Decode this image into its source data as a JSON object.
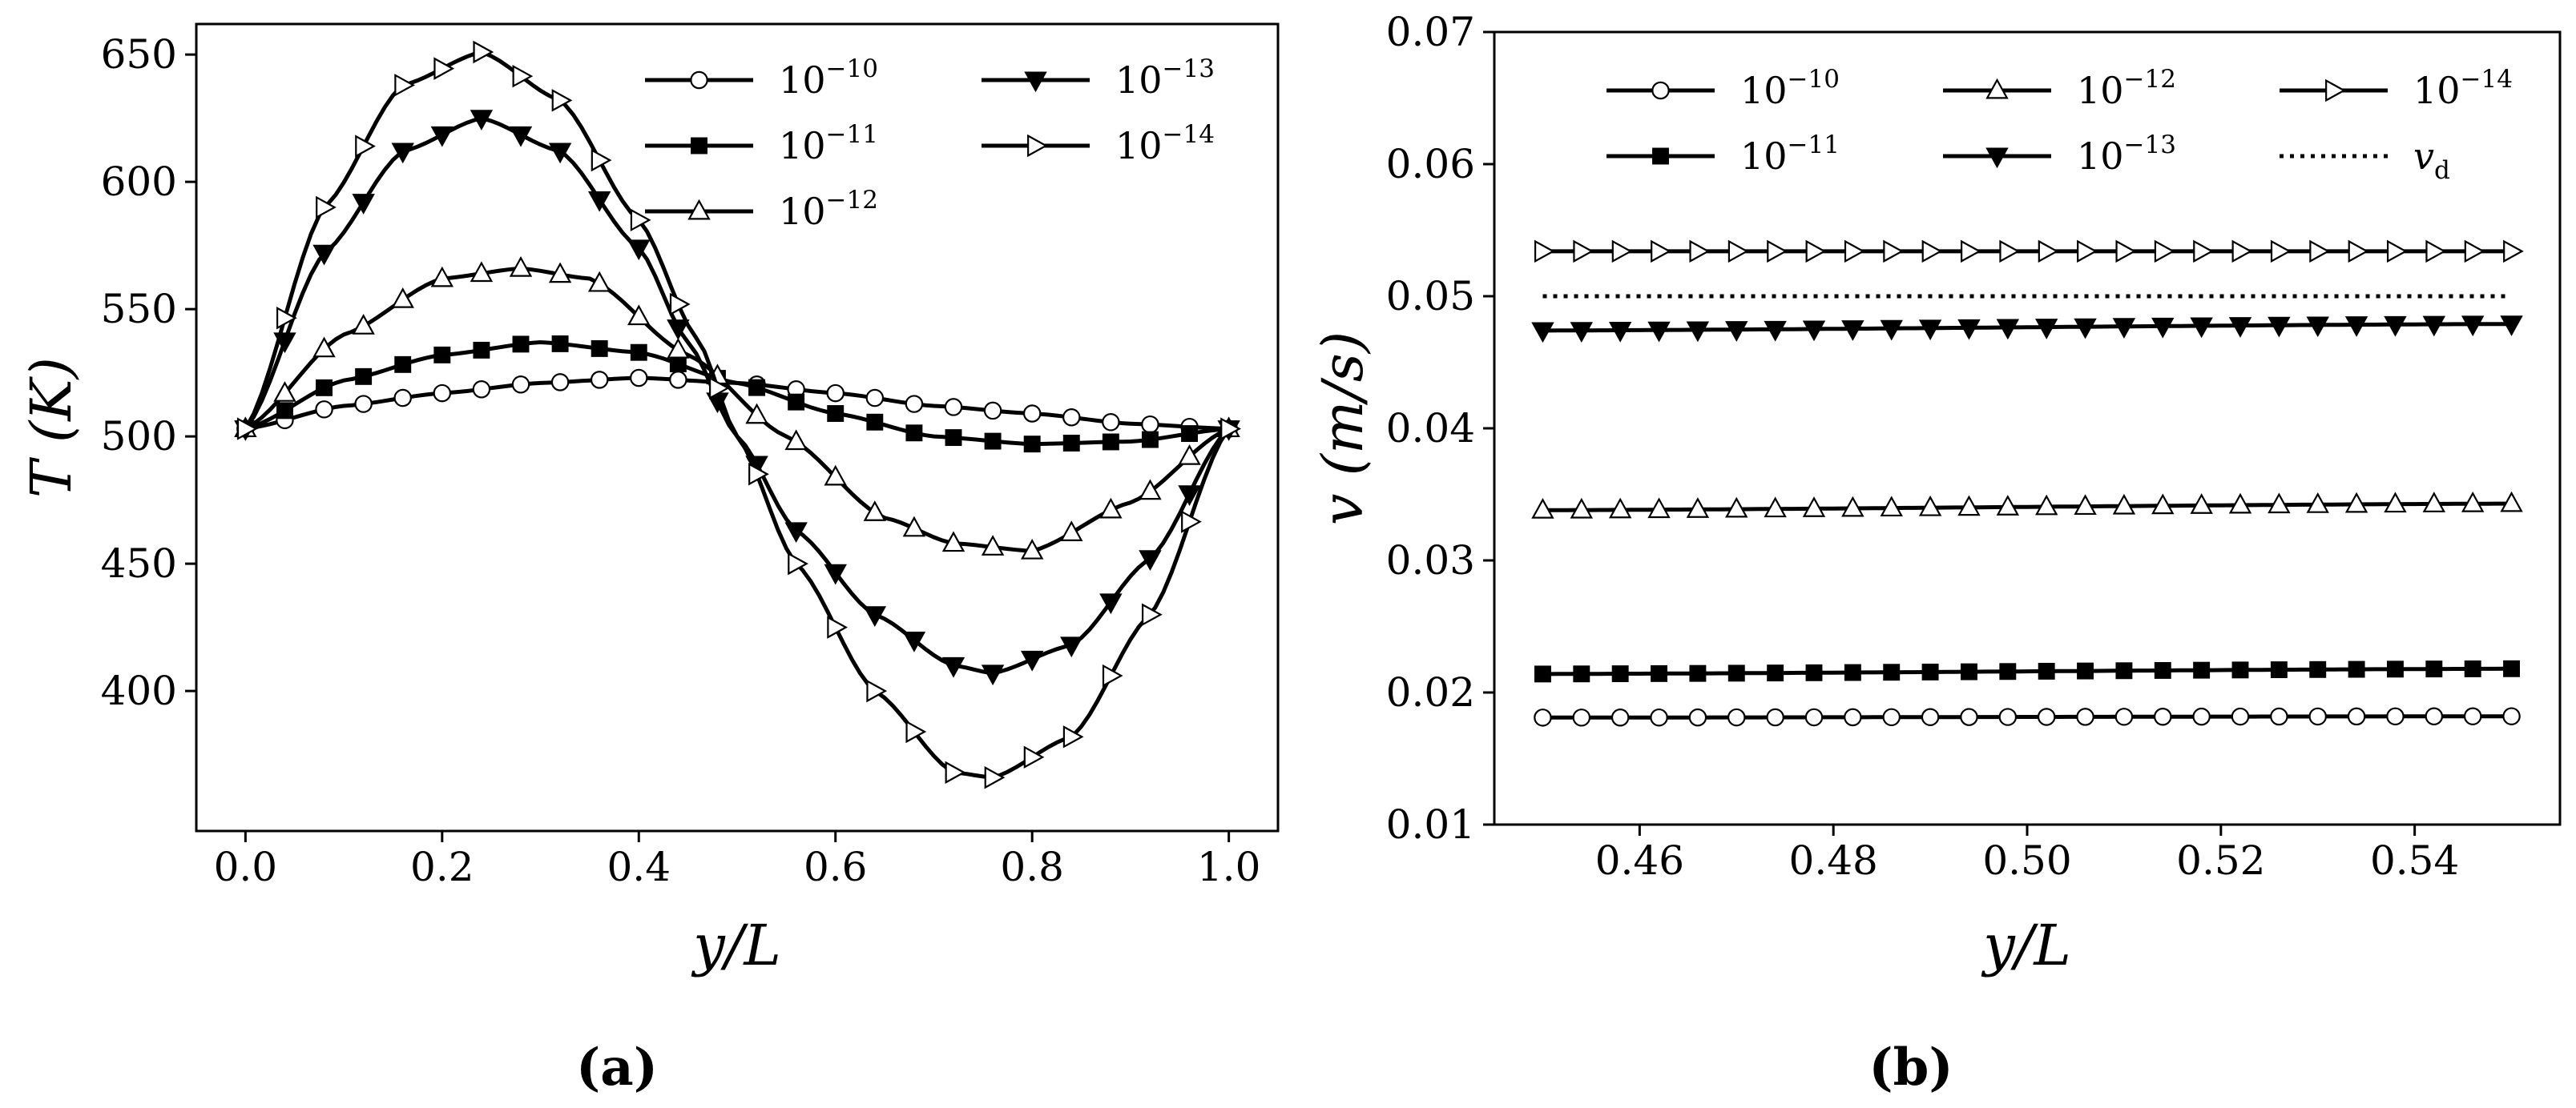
{
  "chart_data": [
    {
      "id": "a",
      "type": "line",
      "caption": "(a)",
      "xlabel": "y/L",
      "ylabel": "T (K)",
      "xlim": [
        -0.05,
        1.05
      ],
      "ylim": [
        345,
        662
      ],
      "xticks": [
        0.0,
        0.2,
        0.4,
        0.6,
        0.8,
        1.0
      ],
      "xtick_labels": [
        "0.0",
        "0.2",
        "0.4",
        "0.6",
        "0.8",
        "1.0"
      ],
      "yticks": [
        400,
        450,
        500,
        550,
        600,
        650
      ],
      "ytick_labels": [
        "400",
        "450",
        "500",
        "550",
        "600",
        "650"
      ],
      "legend_position": "top-right",
      "legend_columns": 2,
      "marker_step": 0.04,
      "series": [
        {
          "name": "10^-10",
          "base": "10",
          "exp": "−10",
          "marker": "circle-open",
          "points": [
            [
              0,
              503
            ],
            [
              0.1,
              512
            ],
            [
              0.2,
              517
            ],
            [
              0.3,
              521
            ],
            [
              0.4,
              523
            ],
            [
              0.5,
              521
            ],
            [
              0.6,
              517
            ],
            [
              0.7,
              512
            ],
            [
              0.8,
              509
            ],
            [
              0.9,
              505
            ],
            [
              1.0,
              503
            ]
          ]
        },
        {
          "name": "10^-11",
          "base": "10",
          "exp": "−11",
          "marker": "square-filled",
          "points": [
            [
              0,
              503
            ],
            [
              0.1,
              522
            ],
            [
              0.2,
              532
            ],
            [
              0.3,
              537
            ],
            [
              0.4,
              533
            ],
            [
              0.5,
              521
            ],
            [
              0.6,
              509
            ],
            [
              0.7,
              500
            ],
            [
              0.8,
              497
            ],
            [
              0.9,
              498
            ],
            [
              1.0,
              503
            ]
          ]
        },
        {
          "name": "10^-12",
          "base": "10",
          "exp": "−12",
          "marker": "triangle-up-open",
          "points": [
            [
              0,
              503
            ],
            [
              0.1,
              540
            ],
            [
              0.2,
              562
            ],
            [
              0.28,
              566
            ],
            [
              0.35,
              562
            ],
            [
              0.45,
              532
            ],
            [
              0.55,
              500
            ],
            [
              0.65,
              468
            ],
            [
              0.72,
              458
            ],
            [
              0.8,
              455
            ],
            [
              0.9,
              474
            ],
            [
              1.0,
              503
            ]
          ]
        },
        {
          "name": "10^-13",
          "base": "10",
          "exp": "−13",
          "marker": "triangle-down-filled",
          "points": [
            [
              0,
              503
            ],
            [
              0.08,
              572
            ],
            [
              0.16,
              612
            ],
            [
              0.24,
              625
            ],
            [
              0.32,
              612
            ],
            [
              0.4,
              574
            ],
            [
              0.45,
              537
            ],
            [
              0.5,
              500
            ],
            [
              0.56,
              463
            ],
            [
              0.64,
              430
            ],
            [
              0.72,
              410
            ],
            [
              0.76,
              407
            ],
            [
              0.84,
              418
            ],
            [
              0.92,
              452
            ],
            [
              1.0,
              503
            ]
          ]
        },
        {
          "name": "10^-14",
          "base": "10",
          "exp": "−14",
          "marker": "triangle-right-open",
          "points": [
            [
              0,
              503
            ],
            [
              0.08,
              590
            ],
            [
              0.16,
              638
            ],
            [
              0.24,
              651
            ],
            [
              0.32,
              632
            ],
            [
              0.4,
              585
            ],
            [
              0.46,
              538
            ],
            [
              0.5,
              500
            ],
            [
              0.56,
              450
            ],
            [
              0.64,
              400
            ],
            [
              0.72,
              368
            ],
            [
              0.76,
              366
            ],
            [
              0.84,
              382
            ],
            [
              0.92,
              430
            ],
            [
              1.0,
              503
            ]
          ]
        }
      ]
    },
    {
      "id": "b",
      "type": "line",
      "caption": "(b)",
      "xlabel": "y/L",
      "ylabel": "v (m/s)",
      "xlim": [
        0.445,
        0.555
      ],
      "ylim": [
        0.01,
        0.07
      ],
      "xticks": [
        0.46,
        0.48,
        0.5,
        0.52,
        0.54
      ],
      "xtick_labels": [
        "0.46",
        "0.48",
        "0.50",
        "0.52",
        "0.54"
      ],
      "yticks": [
        0.01,
        0.02,
        0.03,
        0.04,
        0.05,
        0.06,
        0.07
      ],
      "ytick_labels": [
        "0.01",
        "0.02",
        "0.03",
        "0.04",
        "0.05",
        "0.06",
        "0.07"
      ],
      "legend_position": "top",
      "legend_columns": 3,
      "marker_step": 0.004,
      "series": [
        {
          "name": "10^-10",
          "base": "10",
          "exp": "−10",
          "marker": "circle-open",
          "points": [
            [
              0.45,
              0.0181
            ],
            [
              0.55,
              0.0182
            ]
          ]
        },
        {
          "name": "10^-11",
          "base": "10",
          "exp": "−11",
          "marker": "square-filled",
          "points": [
            [
              0.45,
              0.0214
            ],
            [
              0.55,
              0.0218
            ]
          ]
        },
        {
          "name": "10^-12",
          "base": "10",
          "exp": "−12",
          "marker": "triangle-up-open",
          "points": [
            [
              0.45,
              0.0338
            ],
            [
              0.55,
              0.0343
            ]
          ]
        },
        {
          "name": "10^-13",
          "base": "10",
          "exp": "−13",
          "marker": "triangle-down-filled",
          "points": [
            [
              0.45,
              0.0474
            ],
            [
              0.55,
              0.0479
            ]
          ]
        },
        {
          "name": "10^-14",
          "base": "10",
          "exp": "−14",
          "marker": "triangle-right-open",
          "points": [
            [
              0.45,
              0.0534
            ],
            [
              0.55,
              0.0534
            ]
          ]
        },
        {
          "name": "v_d",
          "base": "v",
          "sub": "d",
          "marker": "none",
          "style": "dotted",
          "points": [
            [
              0.45,
              0.05
            ],
            [
              0.55,
              0.05
            ]
          ]
        }
      ]
    }
  ]
}
